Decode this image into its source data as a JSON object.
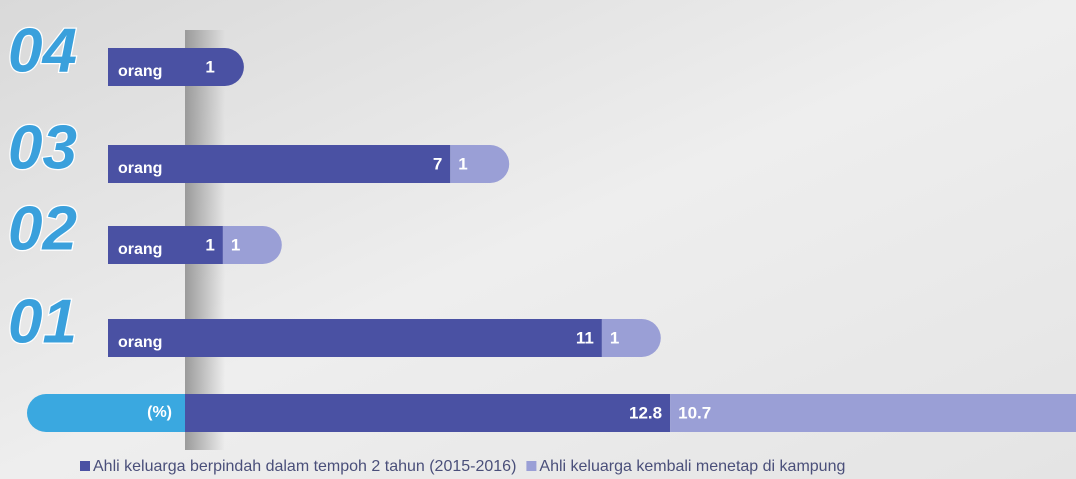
{
  "chart_data": {
    "type": "stacked-bar",
    "categories": [
      "04",
      "03",
      "02",
      "01",
      "(%)"
    ],
    "category_units": [
      "orang",
      "orang",
      "orang",
      "orang",
      null
    ],
    "series": [
      {
        "name": "Ahli keluarga berpindah dalam tempoh 2 tahun (2015-2016)",
        "color": "#4a51a3",
        "values": [
          1,
          7,
          1,
          11,
          12.8
        ]
      },
      {
        "name": "Ahli keluarga kembali menetap di kampung",
        "color": "#9a9fd6",
        "values": [
          null,
          1,
          1,
          1,
          10.7
        ]
      }
    ]
  }
}
